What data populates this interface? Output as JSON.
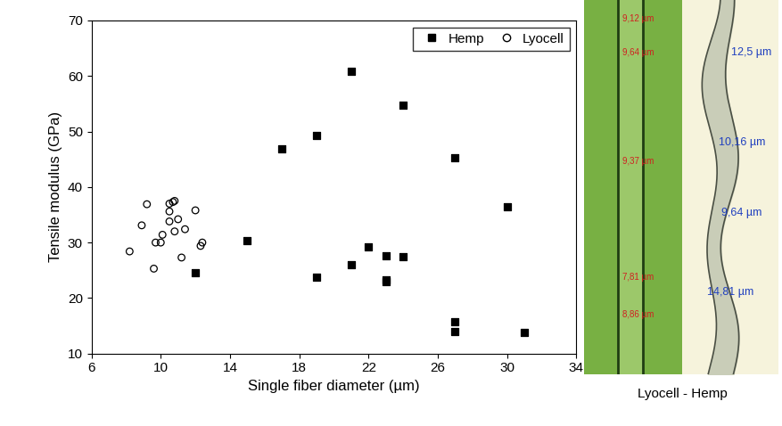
{
  "chart_data": {
    "type": "scatter",
    "x_label": "Single fiber diameter (µm)",
    "y_label": "Tensile modulus (GPa)",
    "xlim": [
      6,
      34
    ],
    "xticks": [
      6,
      10,
      14,
      18,
      22,
      26,
      30,
      34
    ],
    "ylim": [
      10,
      70
    ],
    "yticks": [
      10,
      20,
      30,
      40,
      50,
      60,
      70
    ],
    "grid": false,
    "legend": "upper right",
    "series": [
      {
        "name": "Hemp",
        "color": "#000000",
        "marker": "square",
        "x": [
          12,
          15,
          17,
          19,
          19,
          21,
          21,
          22,
          23,
          23,
          23,
          24,
          24,
          27,
          27,
          27,
          30,
          31
        ],
        "values": [
          24.6,
          30.3,
          46.9,
          49.3,
          23.8,
          60.8,
          26.0,
          29.3,
          27.6,
          23.3,
          22.9,
          54.8,
          27.4,
          45.3,
          15.7,
          14.0,
          36.5,
          13.8
        ]
      },
      {
        "name": "Lyocell",
        "color": "#000000",
        "marker": "open circle",
        "x": [
          8.2,
          8.9,
          9.2,
          9.6,
          9.7,
          10.0,
          10.1,
          10.5,
          10.5,
          10.5,
          10.7,
          10.8,
          10.8,
          11.0,
          11.2,
          11.4,
          12.0,
          12.3,
          12.4
        ],
        "values": [
          28.4,
          33.1,
          36.9,
          25.3,
          30.0,
          30.0,
          31.4,
          37.0,
          35.6,
          33.8,
          37.3,
          37.5,
          32.0,
          34.2,
          27.3,
          32.4,
          35.8,
          29.4,
          30.0
        ]
      }
    ]
  },
  "photo": {
    "caption": "Lyocell - Hemp",
    "lyocell_labels": [
      "9,12 µm",
      "9,64 µm",
      "9,37 µm",
      "7,81 µm",
      "8,86 µm"
    ],
    "hemp_labels": [
      "12,5 µm",
      "10,16 µm",
      "9,64 µm",
      "14,81 µm"
    ]
  }
}
